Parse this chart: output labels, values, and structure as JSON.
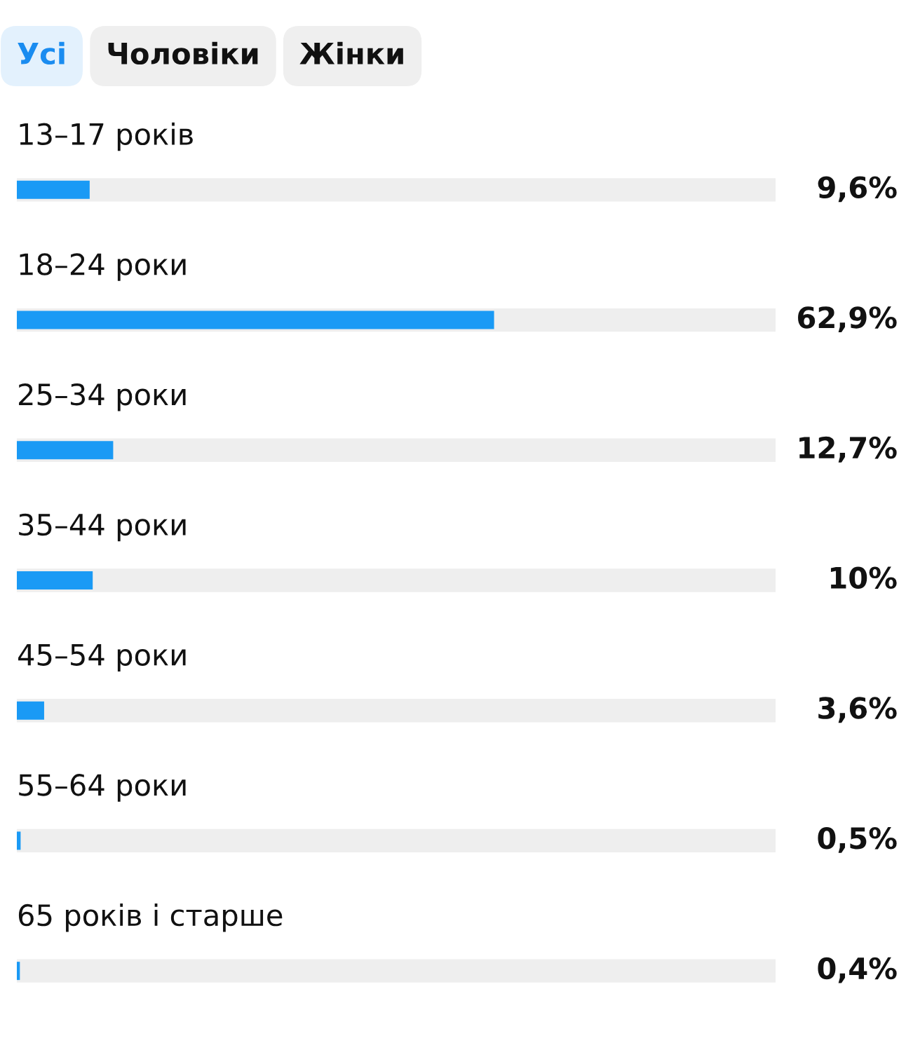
{
  "chart_data": {
    "type": "bar",
    "orientation": "horizontal",
    "annotations": [
      "Усі",
      "Чоловіки",
      "Жінки"
    ],
    "categories": [
      "13–17 років",
      "18–24 роки",
      "25–34 роки",
      "35–44 роки",
      "45–54 роки",
      "55–64 роки",
      "65 років і старше"
    ],
    "values": [
      9.6,
      62.9,
      12.7,
      10,
      3.6,
      0.5,
      0.4
    ],
    "value_labels": [
      "9,6%",
      "62,9%",
      "12,7%",
      "10%",
      "3,6%",
      "0,5%",
      "0,4%"
    ],
    "color": "#1a9af5",
    "xlim": [
      0,
      100
    ],
    "tick_labels": false
  }
}
